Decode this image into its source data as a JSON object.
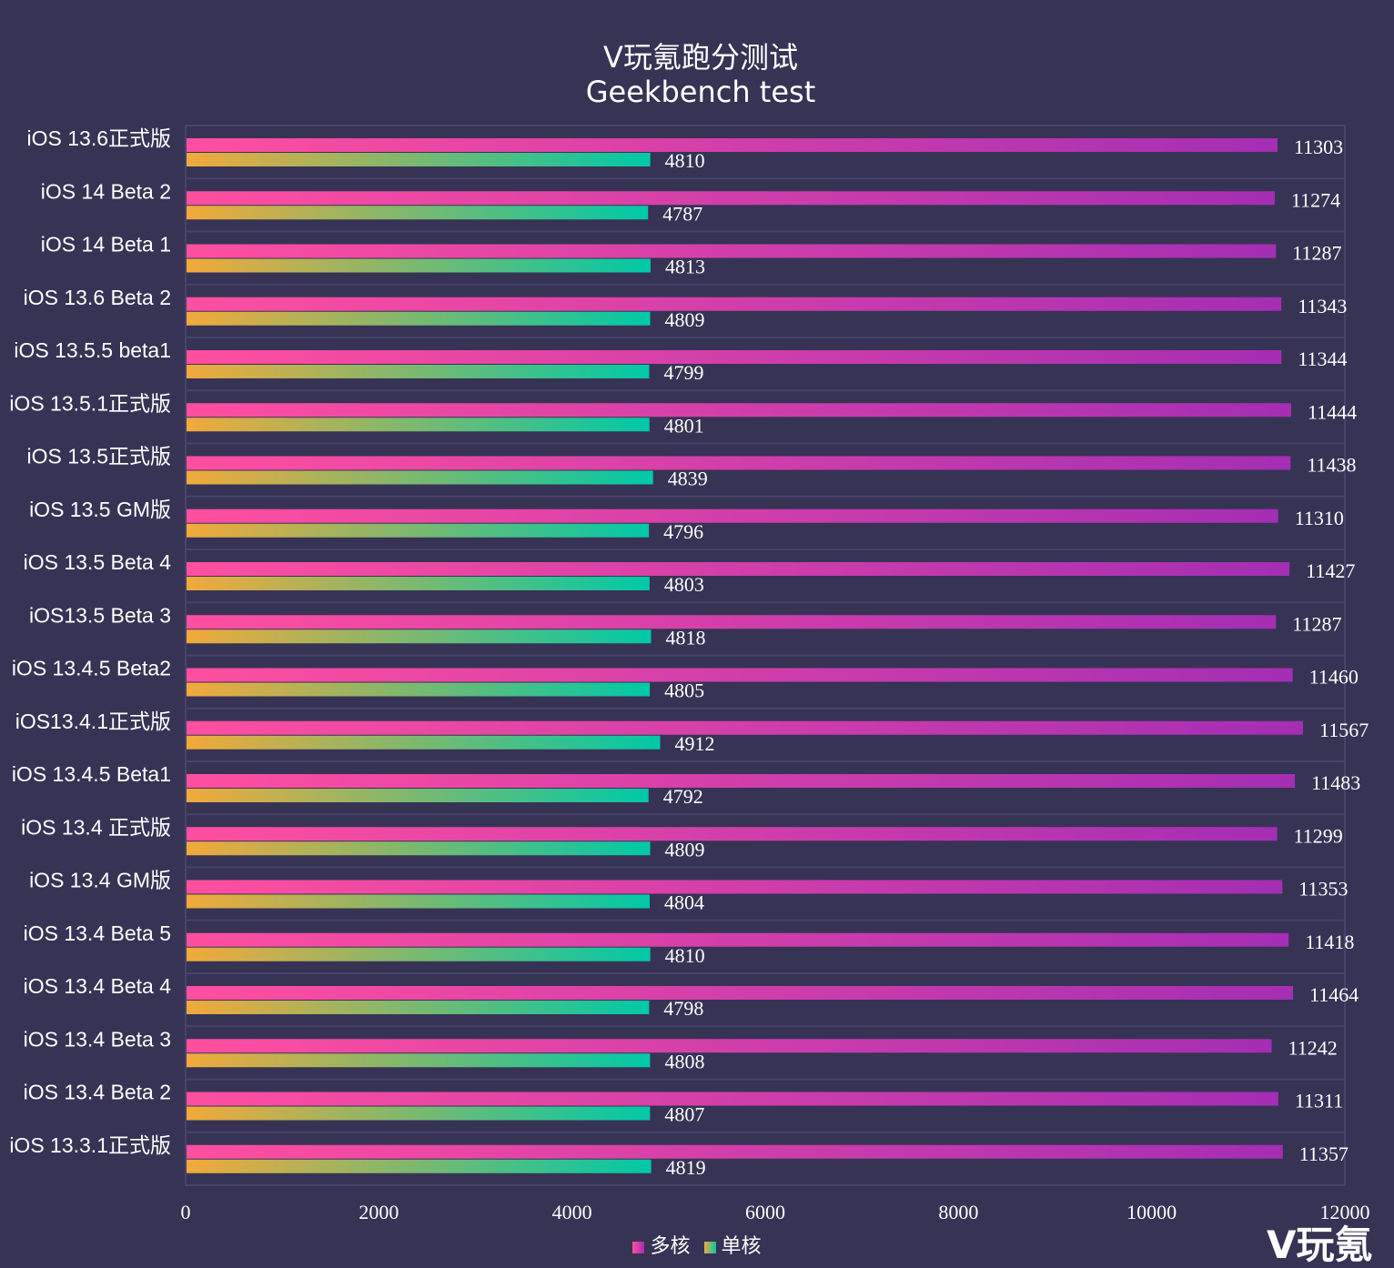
{
  "chart_data": {
    "type": "bar",
    "orientation": "horizontal",
    "title": "V玩氪跑分测试",
    "subtitle": "Geekbench test",
    "categories": [
      "iOS 13.6正式版",
      "iOS 14 Beta 2",
      "iOS 14 Beta 1",
      "iOS 13.6 Beta 2",
      "iOS 13.5.5 beta1",
      "iOS 13.5.1正式版",
      "iOS 13.5正式版",
      "iOS 13.5 GM版",
      "iOS 13.5 Beta 4",
      "iOS13.5 Beta 3",
      "iOS 13.4.5 Beta2",
      "iOS13.4.1正式版",
      "iOS 13.4.5 Beta1",
      "iOS 13.4 正式版",
      "iOS 13.4 GM版",
      "iOS 13.4 Beta 5",
      "iOS 13.4 Beta 4",
      "iOS 13.4 Beta 3",
      "iOS 13.4 Beta 2",
      "iOS 13.3.1正式版"
    ],
    "series": [
      {
        "name": "多核",
        "color_start": "#ff4fa0",
        "color_end": "#a42eb4",
        "values": [
          11303,
          11274,
          11287,
          11343,
          11344,
          11444,
          11438,
          11310,
          11427,
          11287,
          11460,
          11567,
          11483,
          11299,
          11353,
          11418,
          11464,
          11242,
          11311,
          11357
        ]
      },
      {
        "name": "单核",
        "color_start": "#f2a93b",
        "color_end": "#00c9a7",
        "values": [
          4810,
          4787,
          4813,
          4809,
          4799,
          4801,
          4839,
          4796,
          4803,
          4818,
          4805,
          4912,
          4792,
          4809,
          4804,
          4810,
          4798,
          4808,
          4807,
          4819
        ]
      }
    ],
    "xlim": [
      0,
      12000
    ],
    "xticks": [
      "0",
      "2000",
      "4000",
      "6000",
      "8000",
      "10000",
      "12000"
    ],
    "grid": true,
    "legend_position": "bottom",
    "data_labels": true
  },
  "watermark": "V玩氪",
  "colors": {
    "background": "#373355",
    "grid": "#47436b"
  }
}
